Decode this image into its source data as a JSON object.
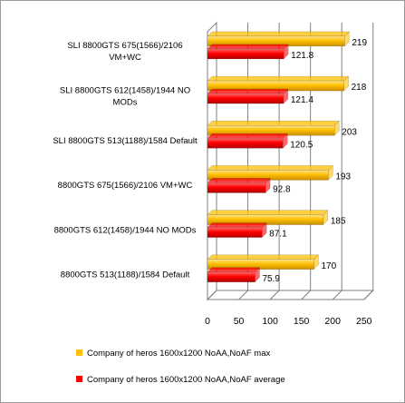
{
  "chart_data": {
    "type": "bar",
    "orientation": "horizontal",
    "categories": [
      [
        "SLI 8800GTS 675(1566)/2106",
        "VM+WC"
      ],
      [
        "SLI 8800GTS 612(1458)/1944 NO",
        "MODs"
      ],
      [
        "SLI 8800GTS 513(1188)/1584 Default"
      ],
      [
        "8800GTS 675(1566)/2106 VM+WC"
      ],
      [
        "8800GTS 612(1458)/1944 NO MODs"
      ],
      [
        "8800GTS 513(1188)/1584 Default"
      ]
    ],
    "series": [
      {
        "name": "Company of heros 1600x1200 NoAA,NoAF max",
        "color": "#FFC000",
        "values": [
          219,
          218,
          203,
          193,
          185,
          170
        ]
      },
      {
        "name": "Company of heros 1600x1200 NoAA,NoAF average",
        "color": "#FF0000",
        "values": [
          121.8,
          121.4,
          120.5,
          92.8,
          87.1,
          75.9
        ]
      }
    ],
    "value_labels": [
      [
        "219",
        "218",
        "203",
        "193",
        "185",
        "170"
      ],
      [
        "121.8",
        "121.4",
        "120.5",
        "92.8",
        "87.1",
        "75.9"
      ]
    ],
    "xlim": [
      0,
      250
    ],
    "x_ticks": [
      "0",
      "50",
      "100",
      "150",
      "200",
      "250"
    ],
    "grid": true,
    "legend_position": "bottom",
    "title": "",
    "xlabel": "",
    "ylabel": ""
  }
}
